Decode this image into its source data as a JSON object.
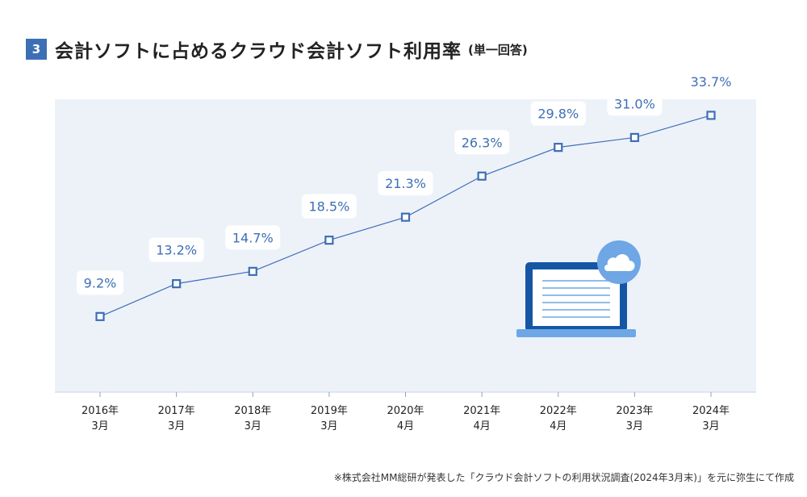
{
  "title": {
    "number": "3",
    "text": "会計ソフトに占めるクラウド会計ソフト利用率",
    "sub": "(単一回答)"
  },
  "chart_data": {
    "type": "line",
    "title": "会計ソフトに占めるクラウド会計ソフト利用率",
    "xlabel": "",
    "ylabel": "",
    "ylim": [
      0,
      40
    ],
    "grid": false,
    "legend": "none",
    "categories": [
      [
        "2016年",
        "3月"
      ],
      [
        "2017年",
        "3月"
      ],
      [
        "2018年",
        "3月"
      ],
      [
        "2019年",
        "3月"
      ],
      [
        "2020年",
        "4月"
      ],
      [
        "2021年",
        "4月"
      ],
      [
        "2022年",
        "4月"
      ],
      [
        "2023年",
        "3月"
      ],
      [
        "2024年",
        "3月"
      ]
    ],
    "series": [
      {
        "name": "クラウド会計ソフト利用率",
        "values": [
          9.2,
          13.2,
          14.7,
          18.5,
          21.3,
          26.3,
          29.8,
          31.0,
          33.7
        ]
      }
    ],
    "data_labels": [
      "9.2%",
      "13.2%",
      "14.7%",
      "18.5%",
      "21.3%",
      "26.3%",
      "29.8%",
      "31.0%",
      "33.7%"
    ]
  },
  "colors": {
    "line": "#3d6fb6",
    "plot_bg": "#edf2f9",
    "accent": "#3d6fb6",
    "laptop_body": "#1556a4",
    "laptop_base": "#6ea6e6",
    "cloud": "#6ea6e6"
  },
  "icons": {
    "laptop": "laptop-icon",
    "cloud": "cloud-icon"
  },
  "footnote": "※株式会社MM総研が発表した「クラウド会計ソフトの利用状況調査(2024年3月末)」を元に弥生にて作成"
}
